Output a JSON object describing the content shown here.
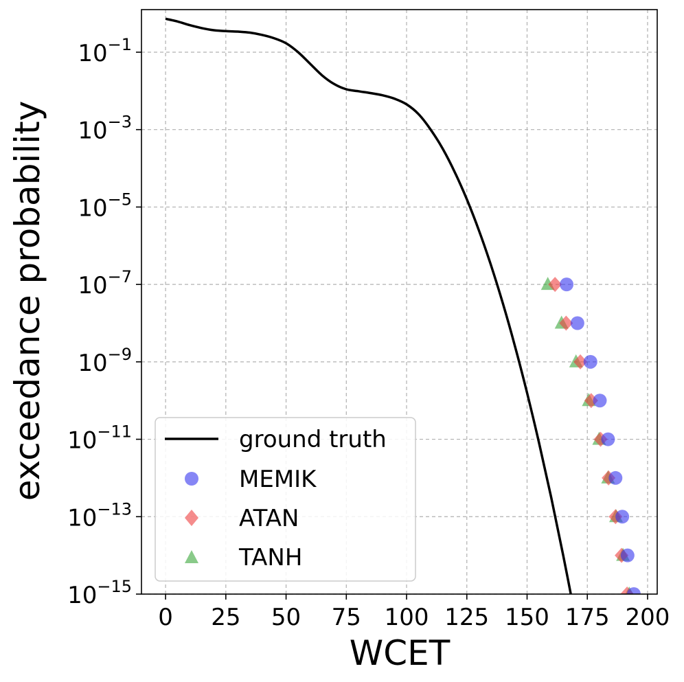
{
  "chart_data": {
    "type": "line",
    "xlabel": "WCET",
    "ylabel": "exceedance probability",
    "xlim": [
      -10,
      204
    ],
    "ylim_log10": [
      -15,
      0.1
    ],
    "y_scale": "log",
    "grid": true,
    "legend_position": "lower-left",
    "x_ticks": [
      0,
      25,
      50,
      75,
      100,
      125,
      150,
      175,
      200
    ],
    "x_tick_labels": [
      "0",
      "25",
      "50",
      "75",
      "100",
      "125",
      "150",
      "175",
      "200"
    ],
    "y_ticks": [
      {
        "exp": -1,
        "base": "10",
        "sup": "−1"
      },
      {
        "exp": -3,
        "base": "10",
        "sup": "−3"
      },
      {
        "exp": -5,
        "base": "10",
        "sup": "−5"
      },
      {
        "exp": -7,
        "base": "10",
        "sup": "−7"
      },
      {
        "exp": -9,
        "base": "10",
        "sup": "−9"
      },
      {
        "exp": -11,
        "base": "10",
        "sup": "−11"
      },
      {
        "exp": -13,
        "base": "10",
        "sup": "−13"
      },
      {
        "exp": -15,
        "base": "10",
        "sup": "−15"
      }
    ],
    "series": [
      {
        "name": "ground truth",
        "kind": "line",
        "color": "#000000",
        "points": [
          [
            0,
            0.73
          ],
          [
            5,
            0.62
          ],
          [
            10,
            0.5
          ],
          [
            15,
            0.42
          ],
          [
            20,
            0.37
          ],
          [
            25,
            0.35
          ],
          [
            30,
            0.34
          ],
          [
            35,
            0.32
          ],
          [
            40,
            0.28
          ],
          [
            45,
            0.23
          ],
          [
            50,
            0.17
          ],
          [
            55,
            0.1
          ],
          [
            60,
            0.05
          ],
          [
            65,
            0.025
          ],
          [
            70,
            0.015
          ],
          [
            75,
            0.011
          ],
          [
            80,
            0.0098
          ],
          [
            85,
            0.0088
          ],
          [
            90,
            0.0077
          ],
          [
            95,
            0.0063
          ],
          [
            100,
            0.0045
          ],
          [
            105,
            0.0025
          ],
          [
            110,
            0.001
          ],
          [
            115,
            0.00032
          ],
          [
            120,
            7.94e-05
          ],
          [
            125,
            1.58e-05
          ],
          [
            130,
            2.51e-06
          ],
          [
            135,
            3.16e-07
          ],
          [
            140,
            3.16e-08
          ],
          [
            145,
            2.51e-09
          ],
          [
            150,
            1.58e-10
          ],
          [
            155,
            7.94e-12
          ],
          [
            160,
            3.16e-13
          ],
          [
            165,
            1e-14
          ],
          [
            170,
            2.51e-16
          ]
        ]
      },
      {
        "name": "MEMIK",
        "kind": "scatter",
        "marker": "circle",
        "color": "#3535ee",
        "points": [
          [
            166.4,
            1e-07
          ],
          [
            170.9,
            1e-08
          ],
          [
            176.3,
            1e-09
          ],
          [
            180.2,
            1e-10
          ],
          [
            183.6,
            1e-11
          ],
          [
            186.7,
            1e-12
          ],
          [
            189.5,
            1e-13
          ],
          [
            191.7,
            1e-14
          ],
          [
            194.3,
            1e-15
          ]
        ]
      },
      {
        "name": "ATAN",
        "kind": "scatter",
        "marker": "diamond",
        "color": "#ee4040",
        "points": [
          [
            161.6,
            1e-07
          ],
          [
            166.2,
            1e-08
          ],
          [
            172.1,
            1e-09
          ],
          [
            176.6,
            1e-10
          ],
          [
            180.5,
            1e-11
          ],
          [
            183.8,
            1e-12
          ],
          [
            186.7,
            1e-13
          ],
          [
            189.2,
            1e-14
          ],
          [
            191.5,
            1e-15
          ]
        ]
      },
      {
        "name": "TANH",
        "kind": "scatter",
        "marker": "triangle",
        "color": "#3aa63a",
        "points": [
          [
            158.6,
            1e-07
          ],
          [
            164.3,
            1e-08
          ],
          [
            170.3,
            1e-09
          ],
          [
            175.6,
            1e-10
          ],
          [
            179.9,
            1e-11
          ],
          [
            183.6,
            1e-12
          ],
          [
            186.9,
            1e-13
          ],
          [
            189.8,
            1e-14
          ],
          [
            192.4,
            1e-15
          ]
        ]
      }
    ]
  }
}
